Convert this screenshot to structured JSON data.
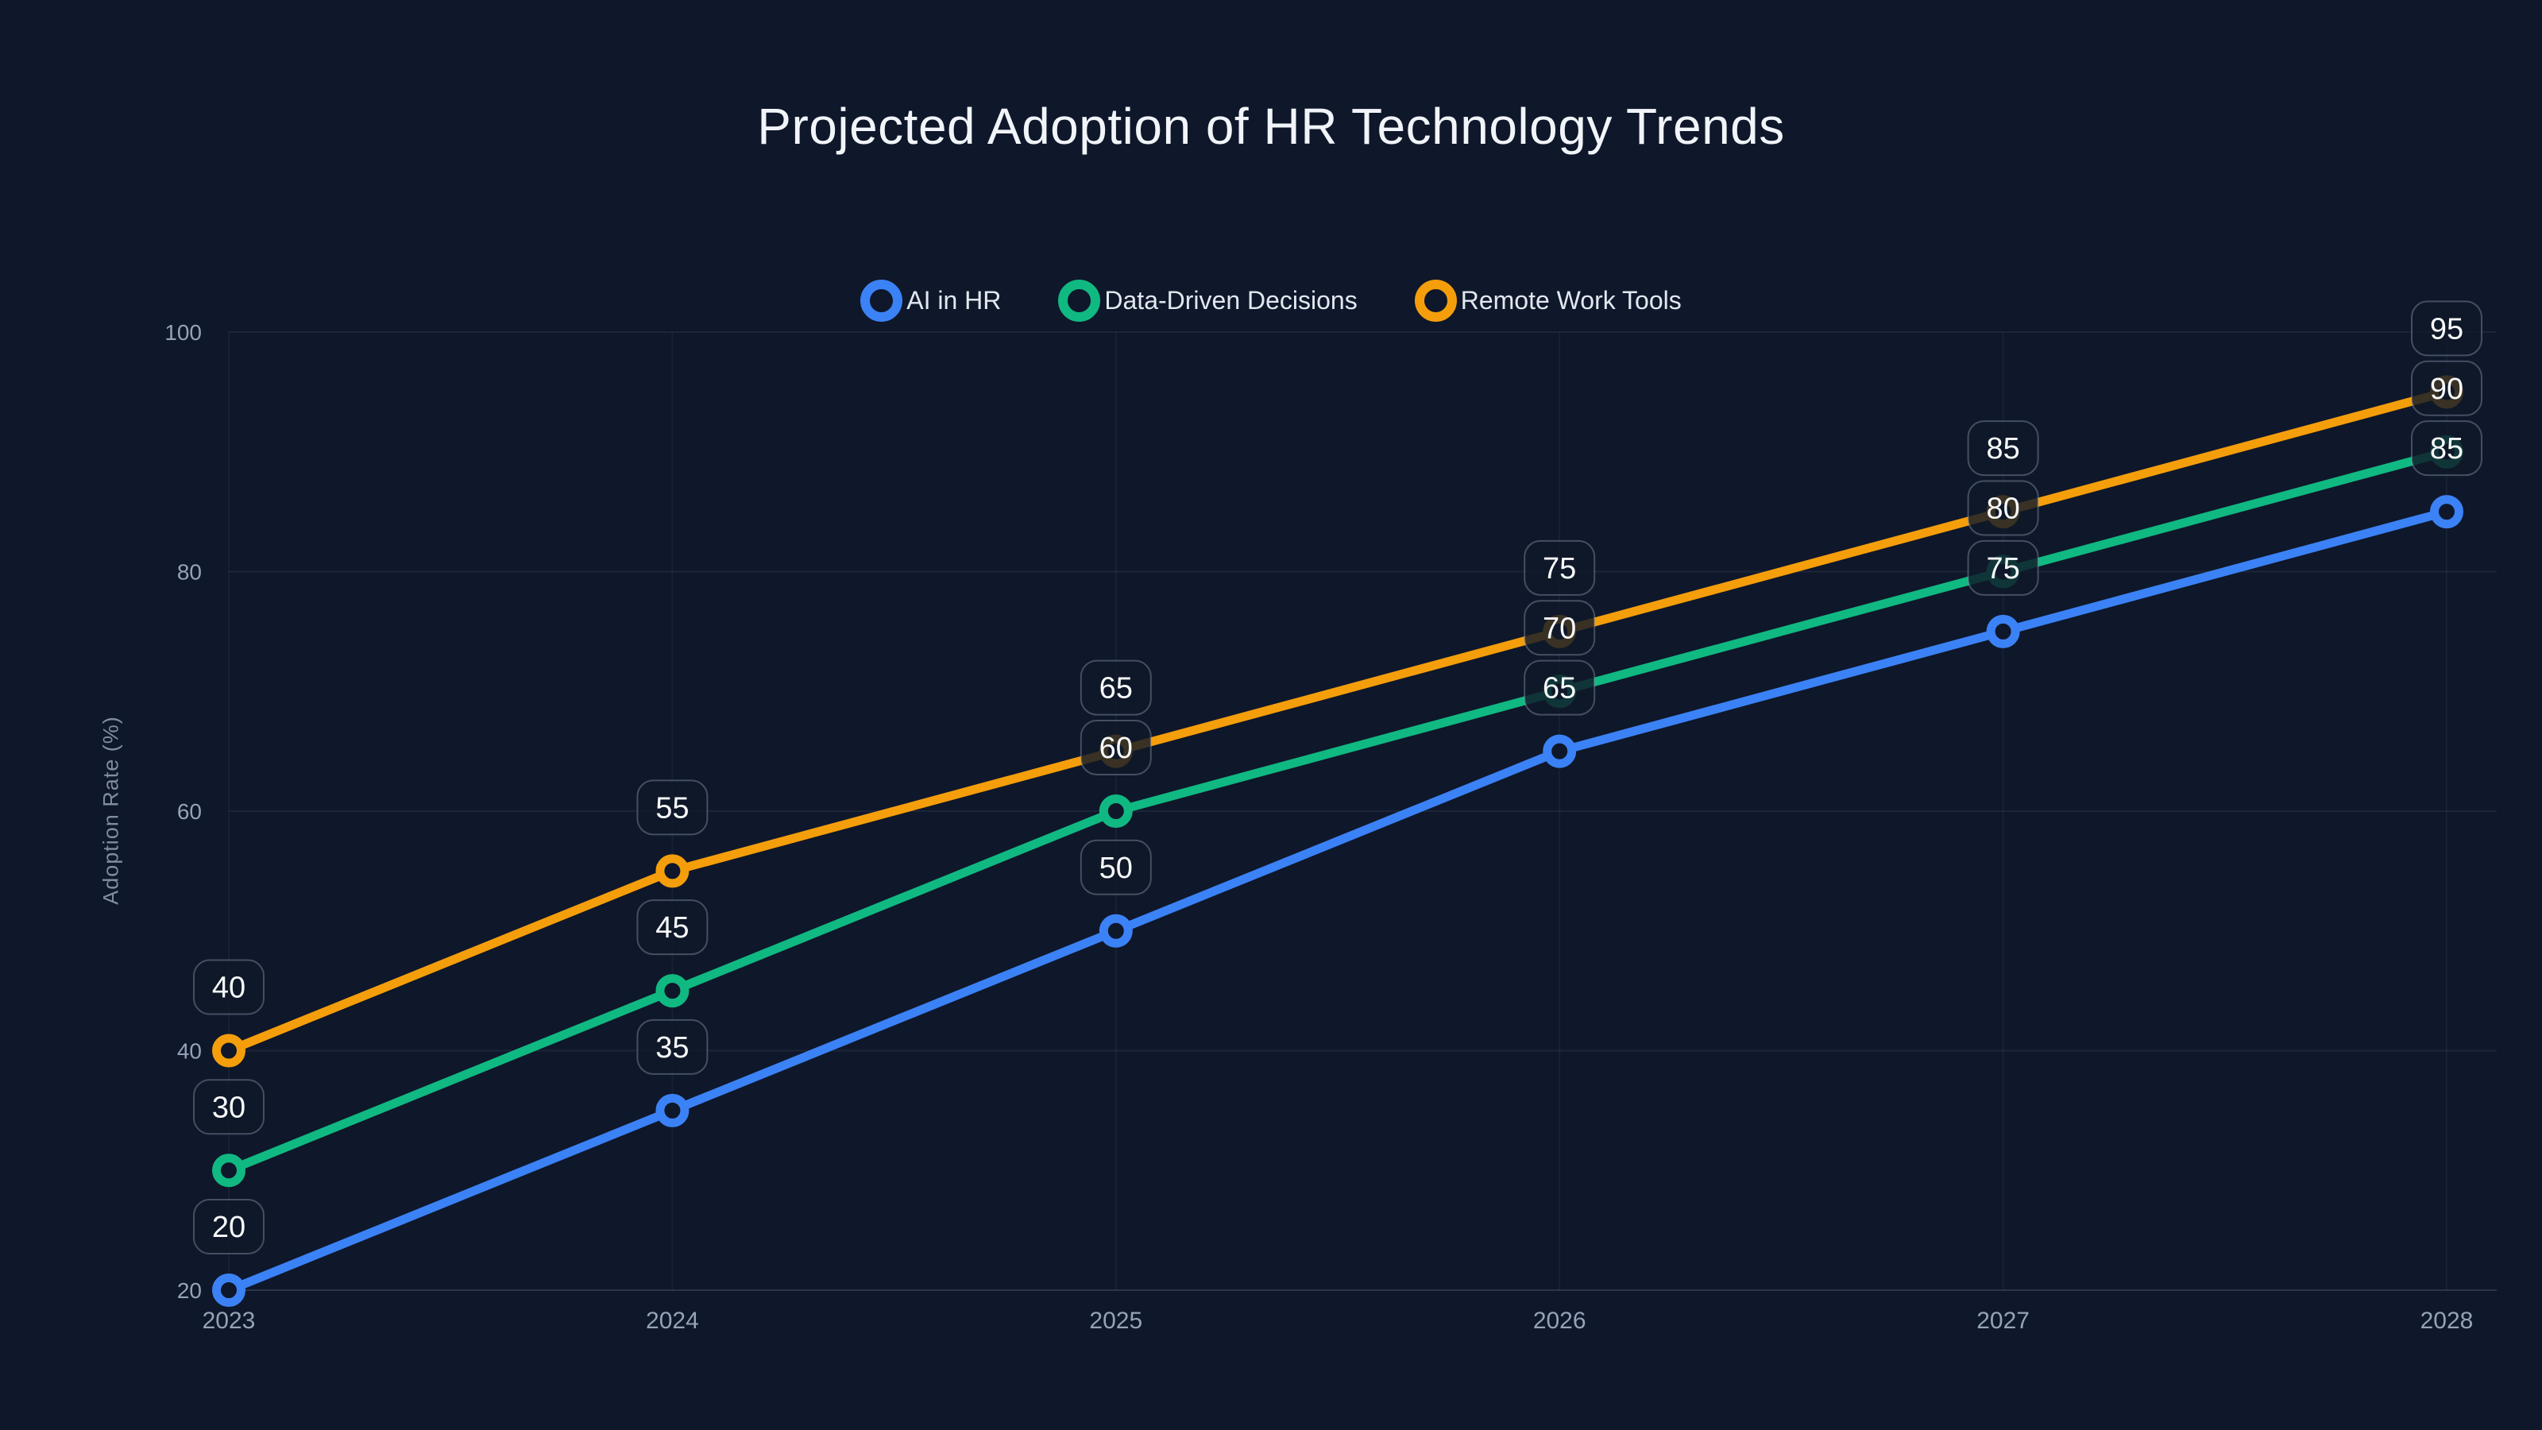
{
  "chart_data": {
    "type": "line",
    "title": "Projected Adoption of HR Technology Trends",
    "ylabel": "Adoption Rate (%)",
    "xlabel": "",
    "categories": [
      "2023",
      "2024",
      "2025",
      "2026",
      "2027",
      "2028"
    ],
    "yticks": [
      20,
      40,
      60,
      80,
      100
    ],
    "ylim": [
      20,
      100
    ],
    "grid": true,
    "legend_position": "top-center",
    "point_labels_shown": true,
    "series": [
      {
        "name": "AI in HR",
        "color": "#3b82f6",
        "values": [
          20,
          35,
          50,
          65,
          75,
          85
        ]
      },
      {
        "name": "Data-Driven Decisions",
        "color": "#10b981",
        "values": [
          30,
          45,
          60,
          70,
          80,
          90
        ]
      },
      {
        "name": "Remote Work Tools",
        "color": "#f59e0b",
        "values": [
          40,
          55,
          65,
          75,
          85,
          95
        ]
      }
    ]
  },
  "colors": {
    "background": "#0f172a",
    "title_text": "#f1f5f9",
    "legend_text": "#e2e8f0",
    "axis_tick_text": "#94a3b8",
    "axis_title_text": "#7f8da1",
    "gridline": "rgba(148,163,184,0.10)",
    "gridline_vertical": "rgba(148,163,184,0.07)",
    "axis_baseline": "rgba(148,163,184,0.22)",
    "badge_fill": "rgba(16,24,40,0.82)",
    "badge_border": "rgba(148,163,184,0.40)",
    "badge_text": "#f8fafc",
    "series_blue": "#3b82f6",
    "series_green": "#10b981",
    "series_orange": "#f59e0b"
  }
}
